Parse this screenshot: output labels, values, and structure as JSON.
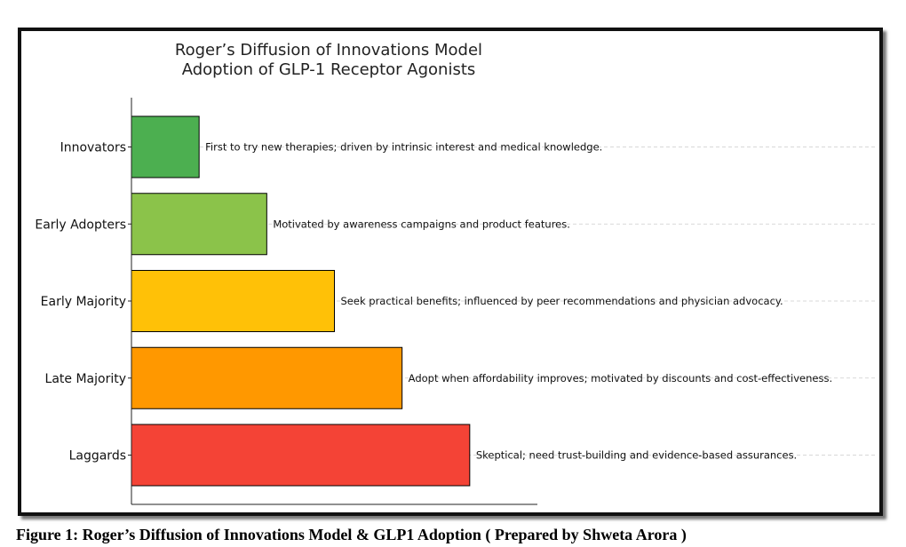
{
  "chart_data": {
    "type": "bar",
    "orientation": "horizontal",
    "title": [
      "Roger’s Diffusion of Innovations Model",
      "Adoption of GLP-1 Receptor Agonists"
    ],
    "xlabel": "",
    "ylabel": "",
    "categories": [
      "Innovators",
      "Early Adopters",
      "Early Majority",
      "Late Majority",
      "Laggards"
    ],
    "values": [
      1,
      2,
      3,
      4,
      5
    ],
    "colors": [
      "#4caf50",
      "#8bc34a",
      "#ffc107",
      "#ff9800",
      "#f44336"
    ],
    "annotations": [
      "First to try new therapies; driven by intrinsic interest and medical knowledge.",
      "Motivated by awareness campaigns and product features.",
      "Seek practical benefits; influenced by peer recommendations and physician advocacy.",
      "Adopt when affordability improves; motivated by discounts and cost-effectiveness.",
      "Skeptical; need trust-building and evidence-based assurances."
    ],
    "xlim": [
      0,
      6
    ],
    "grid": "horizontal dashed",
    "legend": "none"
  },
  "caption": "Figure 1: Roger’s Diffusion of Innovations Model & GLP1 Adoption ( Prepared by Shweta Arora )"
}
